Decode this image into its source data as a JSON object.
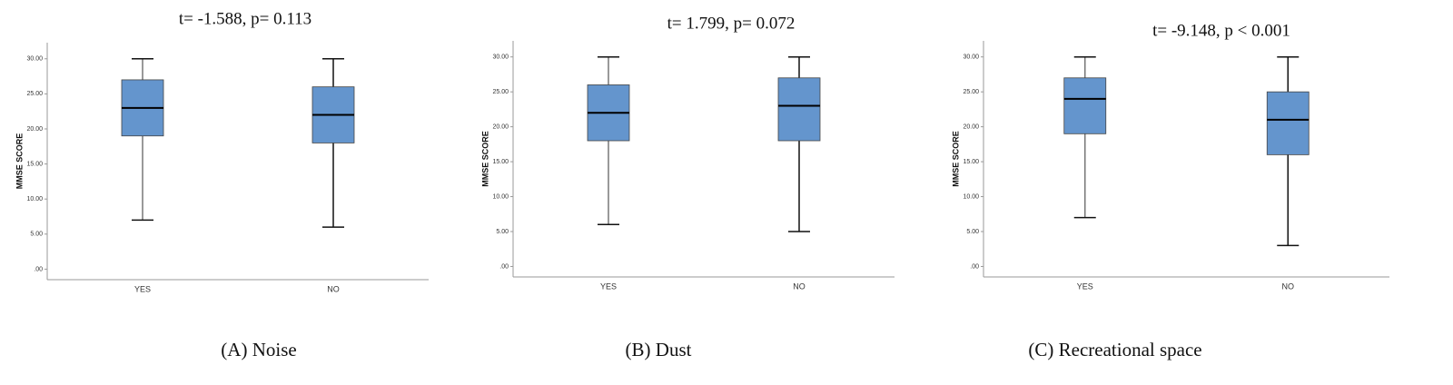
{
  "chart_data": [
    {
      "type": "box",
      "title": "t= -1.588, p= 0.113",
      "caption": "(A) Noise",
      "ylabel": "MMSE SCORE",
      "categories": [
        "YES",
        "NO"
      ],
      "color": "#6495cd",
      "boxes": [
        {
          "min": 7,
          "q1": 19,
          "median": 23,
          "q3": 27,
          "max": 30
        },
        {
          "min": 6,
          "q1": 18,
          "median": 22,
          "q3": 26,
          "max": 30
        }
      ],
      "ylim": [
        -1.5,
        32.3
      ],
      "yticks": [
        {
          "value": 0,
          "label": ".00"
        },
        {
          "value": 5,
          "label": "5.00"
        },
        {
          "value": 10,
          "label": "10.00"
        },
        {
          "value": 15,
          "label": "15.00"
        },
        {
          "value": 20,
          "label": "20.00"
        },
        {
          "value": 25,
          "label": "25.00"
        },
        {
          "value": 30,
          "label": "30.00"
        }
      ]
    },
    {
      "type": "box",
      "title": "t= 1.799, p= 0.072",
      "caption": "(B) Dust",
      "ylabel": "MMSE SCORE",
      "categories": [
        "YES",
        "NO"
      ],
      "color": "#6495cd",
      "boxes": [
        {
          "min": 6,
          "q1": 18,
          "median": 22,
          "q3": 26,
          "max": 30
        },
        {
          "min": 5,
          "q1": 18,
          "median": 23,
          "q3": 27,
          "max": 30
        }
      ],
      "ylim": [
        -1.5,
        32.3
      ],
      "yticks": [
        {
          "value": 0,
          "label": ".00"
        },
        {
          "value": 5,
          "label": "5.00"
        },
        {
          "value": 10,
          "label": "10.00"
        },
        {
          "value": 15,
          "label": "15.00"
        },
        {
          "value": 20,
          "label": "20.00"
        },
        {
          "value": 25,
          "label": "25.00"
        },
        {
          "value": 30,
          "label": "30.00"
        }
      ]
    },
    {
      "type": "box",
      "title": "t= -9.148, p < 0.001",
      "caption": "(C) Recreational space",
      "ylabel": "MMSE SCORE",
      "categories": [
        "YES",
        "NO"
      ],
      "color": "#6495cd",
      "boxes": [
        {
          "min": 7,
          "q1": 19,
          "median": 24,
          "q3": 27,
          "max": 30
        },
        {
          "min": 3,
          "q1": 16,
          "median": 21,
          "q3": 25,
          "max": 30
        }
      ],
      "ylim": [
        -1.5,
        32.3
      ],
      "yticks": [
        {
          "value": 0,
          "label": ".00"
        },
        {
          "value": 5,
          "label": "5.00"
        },
        {
          "value": 10,
          "label": "10.00"
        },
        {
          "value": 15,
          "label": "15.00"
        },
        {
          "value": 20,
          "label": "20.00"
        },
        {
          "value": 25,
          "label": "25.00"
        },
        {
          "value": 30,
          "label": "30.00"
        }
      ]
    }
  ]
}
